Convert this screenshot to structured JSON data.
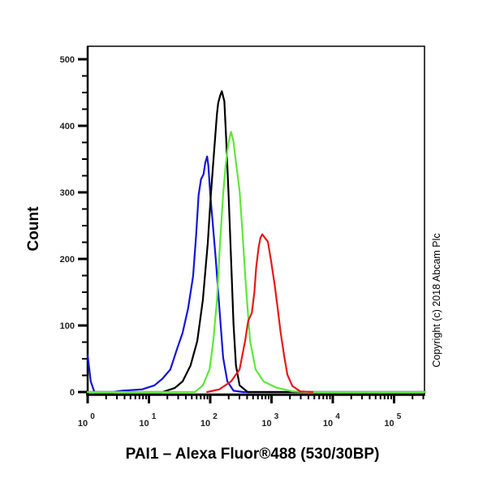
{
  "chart_data": {
    "type": "line",
    "title": "",
    "xlabel": "PAI1 – Alexa Fluor®488 (530/30BP)",
    "ylabel": "Count",
    "xscale": "log",
    "xlim_log10": [
      0,
      5.5
    ],
    "ylim": [
      0,
      520
    ],
    "yticks": [
      0,
      100,
      200,
      300,
      400,
      500
    ],
    "ytick_labels": [
      "0",
      "100",
      "200",
      "300",
      "400",
      "500"
    ],
    "xticks_log10": [
      0,
      1,
      2,
      3,
      4,
      5
    ],
    "xtick_labels": [
      {
        "base": "10",
        "exp": "0"
      },
      {
        "base": "10",
        "exp": "1"
      },
      {
        "base": "10",
        "exp": "2"
      },
      {
        "base": "10",
        "exp": "3"
      },
      {
        "base": "10",
        "exp": "4"
      },
      {
        "base": "10",
        "exp": "5"
      }
    ],
    "grid": false,
    "legend": null,
    "annotation": "Copyright (c) 2018 Abcam Plc",
    "series": [
      {
        "name": "blue",
        "color": "#1414d8",
        "log10_x": [
          0.0,
          0.05,
          0.11,
          0.42,
          0.56,
          0.89,
          1.09,
          1.22,
          1.35,
          1.46,
          1.55,
          1.64,
          1.72,
          1.77,
          1.81,
          1.85,
          1.89,
          1.92,
          1.95,
          1.97,
          2.0,
          2.04,
          2.09,
          2.15,
          2.21,
          2.28,
          2.38,
          2.54,
          5.5
        ],
        "values": [
          55,
          16,
          0,
          0,
          2,
          4,
          10,
          20,
          34,
          65,
          89,
          126,
          174,
          235,
          296,
          320,
          327,
          345,
          354,
          340,
          298,
          255,
          200,
          126,
          52,
          16,
          2,
          0,
          0
        ]
      },
      {
        "name": "black",
        "color": "#000000",
        "log10_x": [
          0.0,
          1.22,
          1.42,
          1.55,
          1.68,
          1.79,
          1.88,
          1.96,
          2.01,
          2.07,
          2.11,
          2.13,
          2.16,
          2.19,
          2.23,
          2.26,
          2.3,
          2.34,
          2.38,
          2.42,
          2.48,
          2.61,
          5.5
        ],
        "values": [
          0,
          0,
          6,
          16,
          40,
          77,
          138,
          224,
          297,
          370,
          418,
          434,
          445,
          452,
          437,
          382,
          297,
          199,
          102,
          40,
          10,
          0,
          0
        ]
      },
      {
        "name": "green",
        "color": "#5ee83a",
        "log10_x": [
          0.0,
          1.75,
          1.88,
          1.99,
          2.05,
          2.11,
          2.16,
          2.21,
          2.25,
          2.29,
          2.32,
          2.34,
          2.38,
          2.42,
          2.48,
          2.53,
          2.58,
          2.65,
          2.74,
          2.87,
          3.07,
          3.34,
          3.6,
          5.5
        ],
        "values": [
          0,
          0,
          10,
          34,
          77,
          138,
          224,
          297,
          339,
          370,
          384,
          391,
          376,
          345,
          302,
          235,
          162,
          77,
          34,
          16,
          7,
          1,
          0,
          0
        ]
      },
      {
        "name": "red",
        "color": "#e81818",
        "log10_x": [
          1.95,
          2.15,
          2.34,
          2.48,
          2.57,
          2.62,
          2.68,
          2.72,
          2.75,
          2.79,
          2.82,
          2.85,
          2.89,
          2.94,
          2.99,
          3.05,
          3.1,
          3.15,
          3.21,
          3.26,
          3.34,
          3.47,
          3.67
        ],
        "values": [
          0,
          4,
          16,
          34,
          77,
          107,
          119,
          150,
          187,
          217,
          232,
          237,
          232,
          226,
          199,
          162,
          126,
          89,
          52,
          26,
          9,
          1,
          0
        ]
      }
    ]
  },
  "labels": {
    "ylabel": "Count",
    "xlabel": "PAI1 – Alexa Fluor®488 (530/30BP)",
    "copyright": "Copyright (c) 2018 Abcam Plc"
  }
}
